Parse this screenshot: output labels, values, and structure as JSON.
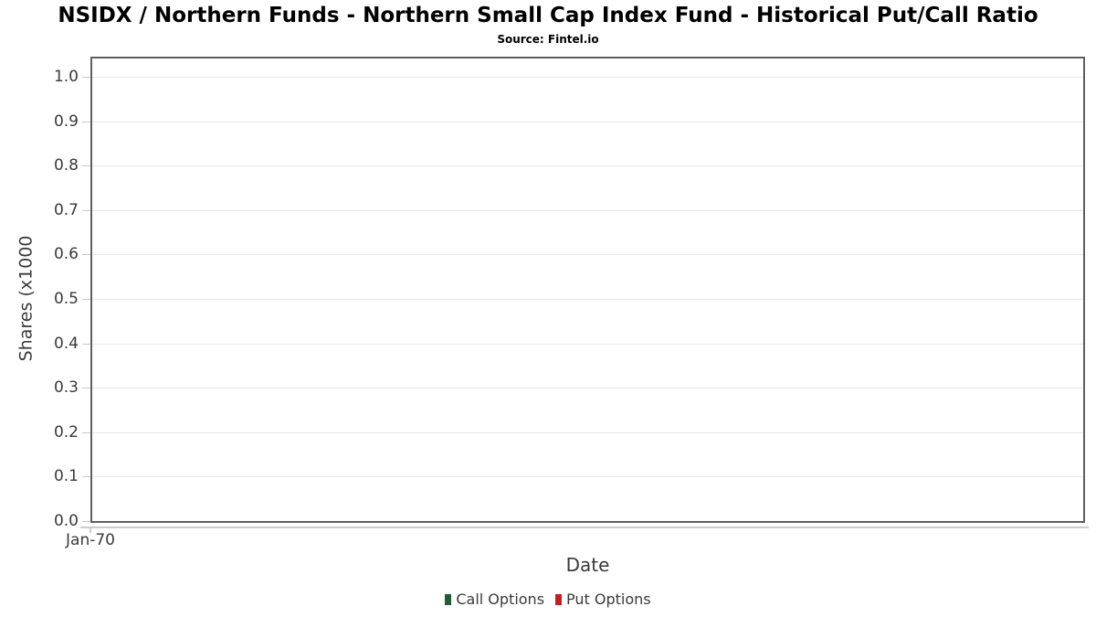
{
  "chart_data": {
    "type": "bar",
    "title": "NSIDX / Northern Funds - Northern Small Cap Index Fund - Historical Put/Call Ratio",
    "subtitle": "Source: Fintel.io",
    "xlabel": "Date",
    "ylabel": "Shares (x1000",
    "ylim": [
      0.0,
      1.05
    ],
    "yticks": [
      0.0,
      0.1,
      0.2,
      0.3,
      0.4,
      0.5,
      0.6,
      0.7,
      0.8,
      0.9,
      1.0
    ],
    "ytick_labels": [
      "0.0",
      "0.1",
      "0.2",
      "0.3",
      "0.4",
      "0.5",
      "0.6",
      "0.7",
      "0.8",
      "0.9",
      "1.0"
    ],
    "xtick_labels": [
      "Jan-70"
    ],
    "grid": "horizontal",
    "legend_position": "bottom",
    "series": [
      {
        "name": "Call Options",
        "color": "#215c35",
        "x": [],
        "values": []
      },
      {
        "name": "Put Options",
        "color": "#bb2222",
        "x": [],
        "values": []
      }
    ]
  },
  "colors": {
    "plot_border": "#5f5f5f",
    "gridline": "#e7e7e7",
    "axis_tick": "#c9c9c9",
    "title_text": "#000000",
    "label_text": "#3a3a3a",
    "call_options_green": "#215c35",
    "put_options_red": "#bb2222"
  }
}
